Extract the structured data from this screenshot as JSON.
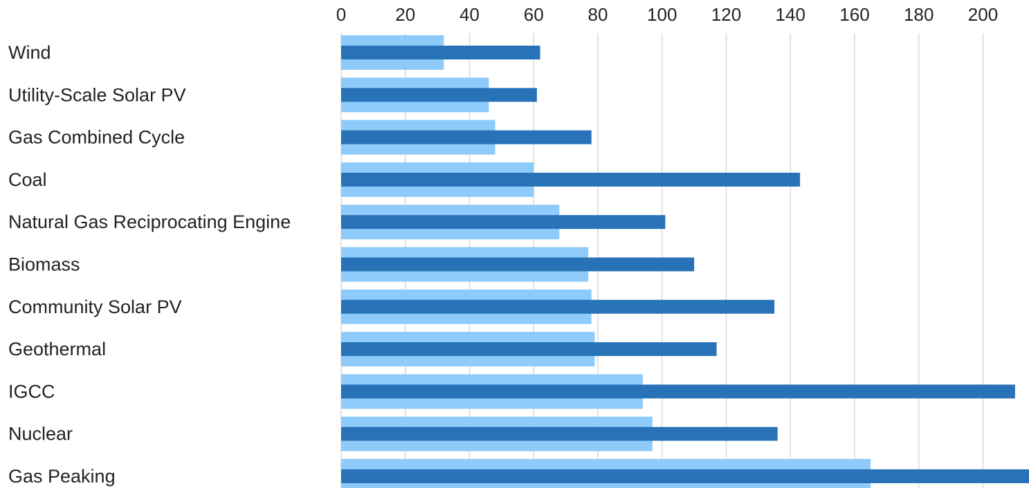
{
  "chart_data": {
    "type": "bar",
    "orientation": "horizontal",
    "title": "",
    "xlabel": "",
    "ylabel": "",
    "xlim": [
      0,
      216
    ],
    "ticks": [
      "0",
      "20",
      "40",
      "60",
      "80",
      "100",
      "120",
      "140",
      "160",
      "180",
      "200"
    ],
    "tick_values": [
      0,
      20,
      40,
      60,
      80,
      100,
      120,
      140,
      160,
      180,
      200
    ],
    "grid": true,
    "legend": "none",
    "categories": [
      "Wind",
      "Utility-Scale Solar PV",
      "Gas Combined Cycle",
      "Coal",
      "Natural Gas Reciprocating Engine",
      "Biomass",
      "Community Solar PV",
      "Geothermal",
      "IGCC",
      "Nuclear",
      "Gas Peaking"
    ],
    "series": [
      {
        "color": "#8ecbfb",
        "values": [
          32,
          46,
          48,
          60,
          68,
          77,
          78,
          79,
          94,
          97,
          165
        ]
      },
      {
        "color": "#2873b8",
        "values": [
          62,
          61,
          78,
          143,
          101,
          110,
          135,
          117,
          210,
          136,
          216
        ]
      }
    ]
  }
}
